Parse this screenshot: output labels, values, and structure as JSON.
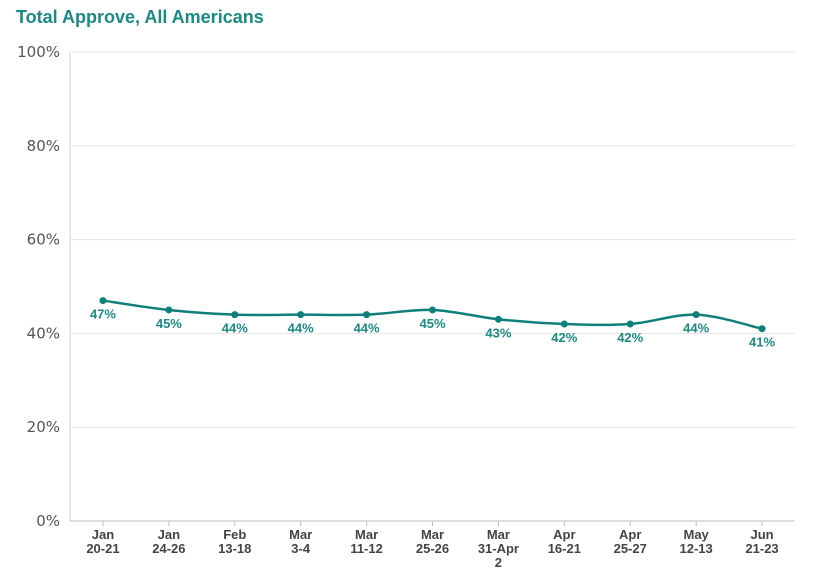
{
  "chart_data": {
    "type": "line",
    "title": "Total Approve, All Americans",
    "xlabel": "",
    "ylabel": "",
    "ylim": [
      0,
      100
    ],
    "yticks": [
      "0%",
      "20%",
      "40%",
      "60%",
      "80%",
      "100%"
    ],
    "categories": [
      [
        "Jan",
        "20-21"
      ],
      [
        "Jan",
        "24-26"
      ],
      [
        "Feb",
        "13-18"
      ],
      [
        "Mar",
        "3-4"
      ],
      [
        "Mar",
        "11-12"
      ],
      [
        "Mar",
        "25-26"
      ],
      [
        "Mar",
        "31-Apr",
        "2"
      ],
      [
        "Apr",
        "16-21"
      ],
      [
        "Apr",
        "25-27"
      ],
      [
        "May",
        "12-13"
      ],
      [
        "Jun",
        "21-23"
      ]
    ],
    "series": [
      {
        "values": [
          47,
          45,
          44,
          44,
          44,
          45,
          43,
          42,
          42,
          44,
          41
        ],
        "labels": [
          "47%",
          "45%",
          "44%",
          "44%",
          "44%",
          "45%",
          "43%",
          "42%",
          "42%",
          "44%",
          "41%"
        ]
      }
    ],
    "grid": true,
    "line_color": "#0f7f7a",
    "label_color": "#1a8a84"
  }
}
